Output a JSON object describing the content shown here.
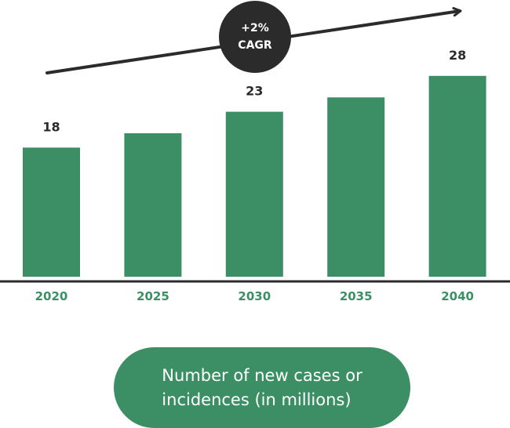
{
  "colors": {
    "bar": "#3c8f64",
    "tick_label": "#3c8f64",
    "value_label": "#2b2b2b",
    "axis": "#2b2b2b",
    "badge": "#2b2b2b",
    "badge_text": "#ffffff",
    "pill": "#3c8f64",
    "pill_text": "#ffffff"
  },
  "annotation": {
    "line1": "+2%",
    "line2": "CAGR",
    "arrow": "trend-arrow-up-right"
  },
  "caption": "Number of new cases or\nincidences (in millions)",
  "chart_data": {
    "type": "bar",
    "categories": [
      "2020",
      "2025",
      "2030",
      "2035",
      "2040"
    ],
    "values": [
      18,
      20,
      23,
      25,
      28
    ],
    "data_labels": [
      "18",
      "",
      "23",
      "",
      "28"
    ],
    "title": "",
    "xlabel": "",
    "ylabel": "",
    "ylim": [
      0,
      28
    ],
    "grid": false,
    "legend": "none"
  }
}
